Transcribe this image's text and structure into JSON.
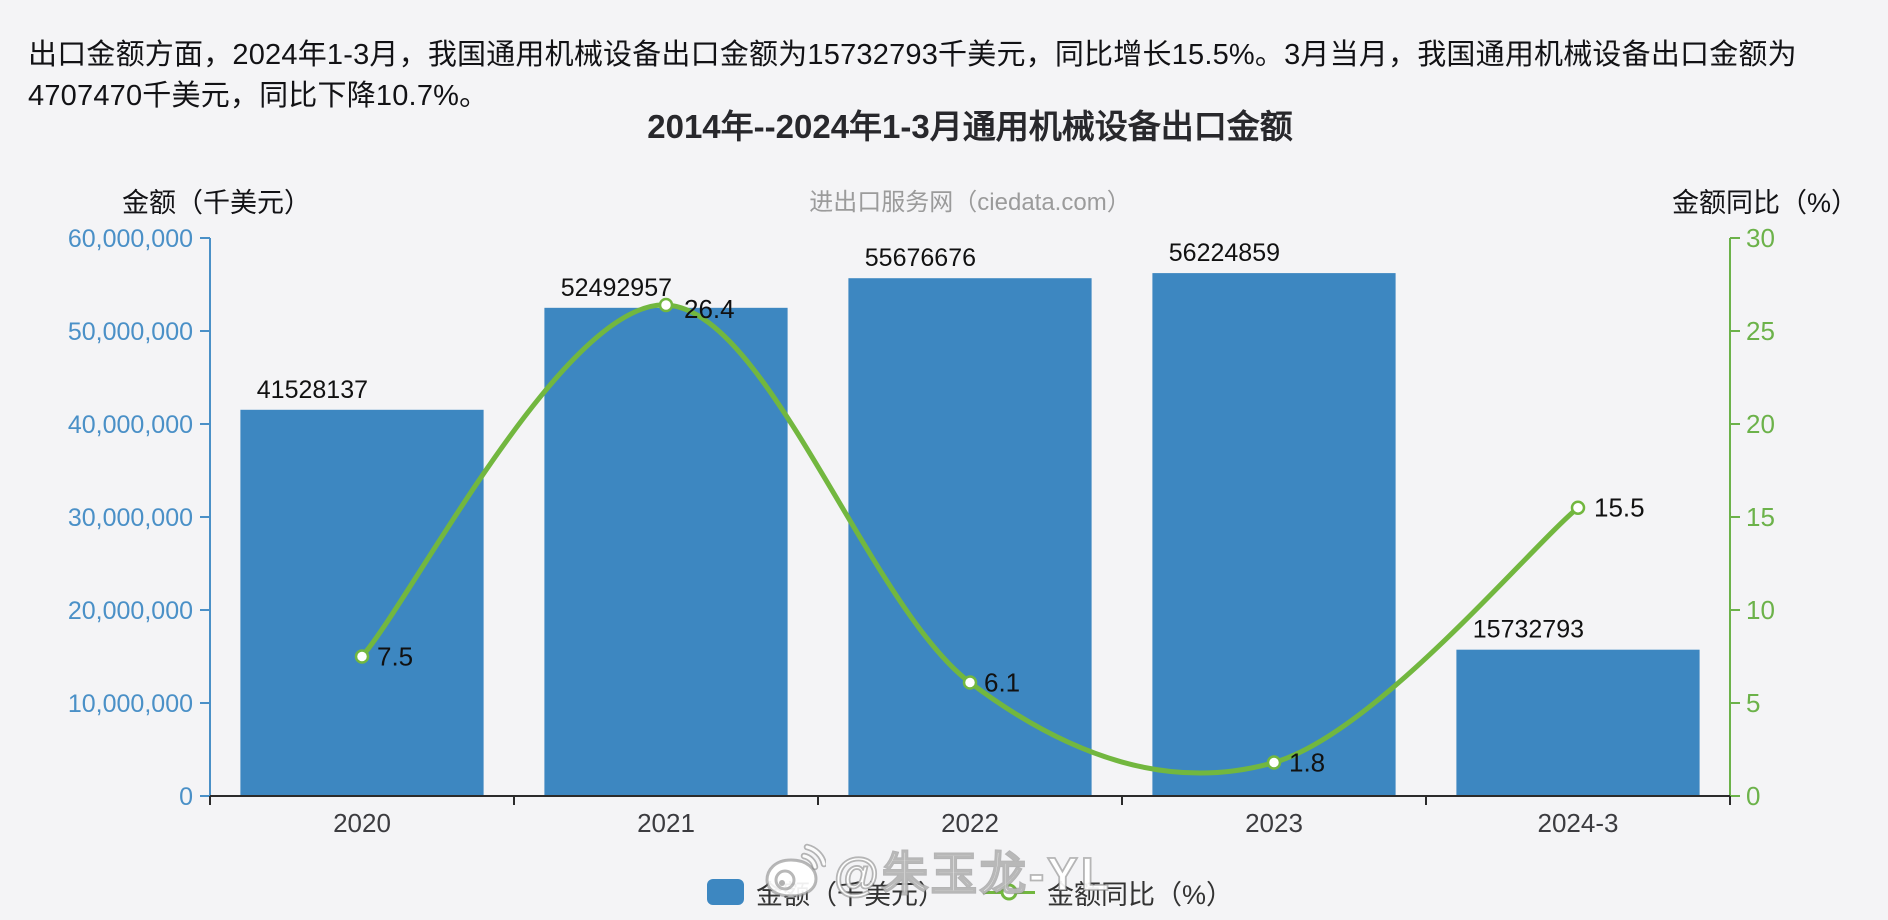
{
  "header": {
    "paragraph": "出口金额方面，2024年1-3月，我国通用机械设备出口金额为15732793千美元，同比增长15.5%。3月当月，我国通用机械设备出口金额为4707470千美元，同比下降10.7%。"
  },
  "chart": {
    "title": "2014年--2024年1-3月通用机械设备出口金额",
    "subtitle": "进出口服务网（ciedata.com）",
    "left_axis_title": "金额（千美元）",
    "right_axis_title": "金额同比（%）",
    "colors": {
      "bar": "#3d87c1",
      "line": "#72b73f",
      "left_axis": "#4a90c7",
      "right_axis": "#6cb24a",
      "x_axis": "#2b2b2b",
      "value_label": "#111111",
      "x_label": "#3c3c40",
      "background": "#f4f4f6"
    },
    "legend": [
      {
        "label": "金额（千美元）",
        "type": "bar"
      },
      {
        "label": "金额同比（%）",
        "type": "line"
      }
    ]
  },
  "watermark": {
    "icon": "weibo-icon",
    "text": "@朱玉龙-YL"
  },
  "chart_data": {
    "type": "bar",
    "categories": [
      "2020",
      "2021",
      "2022",
      "2023",
      "2024-3"
    ],
    "series": [
      {
        "name": "金额（千美元）",
        "type": "bar",
        "axis": "left",
        "values": [
          41528137,
          52492957,
          55676676,
          56224859,
          15732793
        ],
        "value_labels": [
          "41528137",
          "52492957",
          "55676676",
          "56224859",
          "15732793"
        ]
      },
      {
        "name": "金额同比（%）",
        "type": "line",
        "axis": "right",
        "values": [
          7.5,
          26.4,
          6.1,
          1.8,
          15.5
        ],
        "value_labels": [
          "7.5",
          "26.4",
          "6.1",
          "1.8",
          "15.5"
        ]
      }
    ],
    "left_axis": {
      "min": 0,
      "max": 60000000,
      "tick_step": 10000000,
      "tick_labels": [
        "0",
        "10,000,000",
        "20,000,000",
        "30,000,000",
        "40,000,000",
        "50,000,000",
        "60,000,000"
      ]
    },
    "right_axis": {
      "min": 0,
      "max": 30,
      "tick_step": 5,
      "tick_labels": [
        "0",
        "5",
        "10",
        "15",
        "20",
        "25",
        "30"
      ]
    },
    "title": "2014年--2024年1-3月通用机械设备出口金额",
    "grid": false,
    "legend_position": "bottom"
  }
}
